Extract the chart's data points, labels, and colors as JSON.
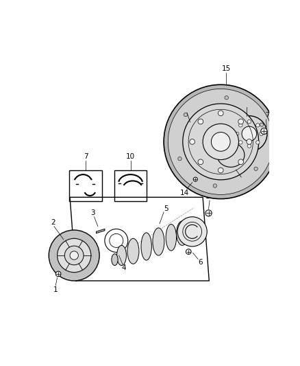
{
  "bg_color": "#ffffff",
  "line_color": "#000000",
  "light_gray": "#cccccc",
  "mid_gray": "#aaaaaa",
  "dark_gray": "#666666",
  "figsize": [
    4.38,
    5.33
  ],
  "dpi": 100
}
